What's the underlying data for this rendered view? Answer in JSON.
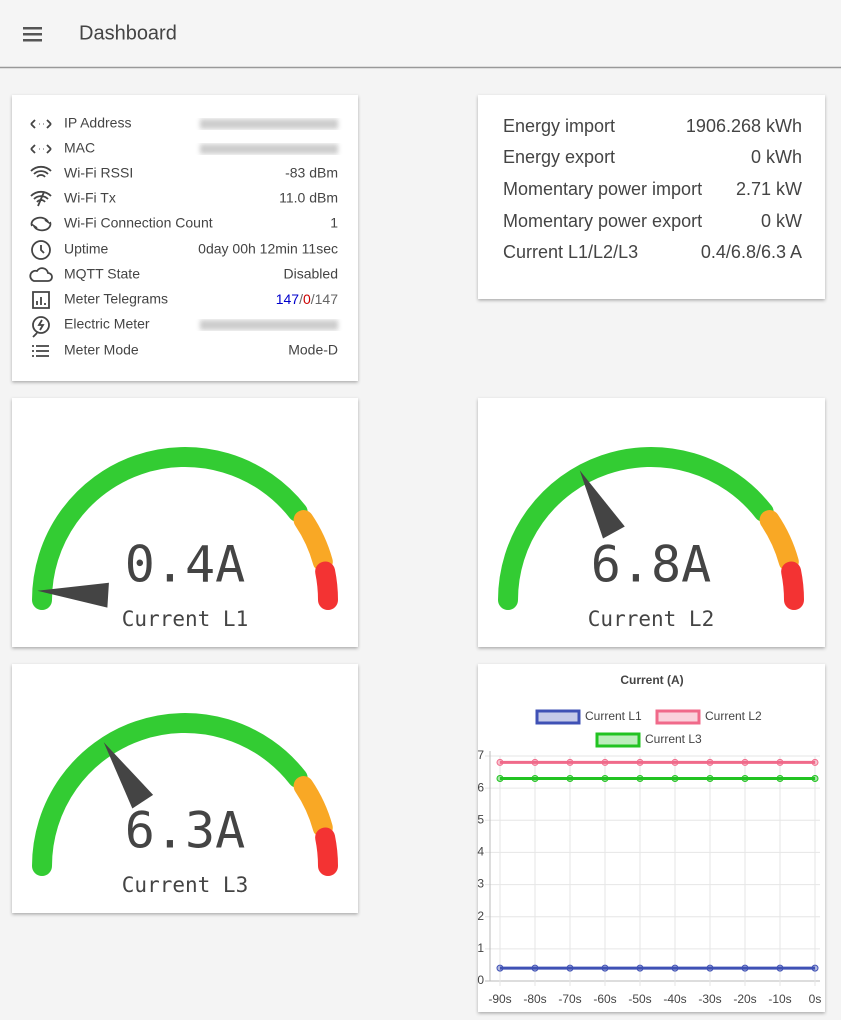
{
  "header": {
    "title": "Dashboard"
  },
  "info": {
    "rows": [
      {
        "label": "IP Address",
        "value": null
      },
      {
        "label": "MAC",
        "value": null
      },
      {
        "label": "Wi-Fi RSSI",
        "value": "-83 dBm"
      },
      {
        "label": "Wi-Fi Tx",
        "value": "11.0 dBm"
      },
      {
        "label": "Wi-Fi Connection Count",
        "value": "1"
      },
      {
        "label": "Uptime",
        "value": "0day 00h 12min 11sec"
      },
      {
        "label": "MQTT State",
        "value": "Disabled"
      },
      {
        "label": "Meter Telegrams",
        "value_parts": [
          {
            "text": "147",
            "color": "#0000cc"
          },
          {
            "text": "/"
          },
          {
            "text": "0",
            "color": "#cc0000"
          },
          {
            "text": "/147"
          }
        ]
      },
      {
        "label": "Electric Meter",
        "value": null
      },
      {
        "label": "Meter Mode",
        "value": "Mode-D"
      }
    ]
  },
  "energy": {
    "rows": [
      {
        "label": "Energy import",
        "value": "1906.268 kWh"
      },
      {
        "label": "Energy export",
        "value": "0 kWh"
      },
      {
        "label": "Momentary power import",
        "value": "2.71 kW"
      },
      {
        "label": "Momentary power export",
        "value": "0 kW"
      },
      {
        "label": "Current L1/L2/L3",
        "value": "0.4/6.8/6.3 A"
      }
    ]
  },
  "gauges": [
    {
      "value": 0.4,
      "value_label": "0.4A",
      "label": "Current L1"
    },
    {
      "value": 6.8,
      "value_label": "6.8A",
      "label": "Current L2"
    },
    {
      "value": 6.3,
      "value_label": "6.3A",
      "label": "Current L3"
    }
  ],
  "gauge_scale": {
    "min": 0,
    "max": 20,
    "zones": [
      {
        "to": 16,
        "color": "#33cc33"
      },
      {
        "to": 18.5,
        "color": "#f9a825"
      },
      {
        "to": 20,
        "color": "#f33333"
      }
    ],
    "needle_color": "#444444"
  },
  "chart_data": {
    "type": "line",
    "title": "Current (A)",
    "categories": [
      "-90s",
      "-80s",
      "-70s",
      "-60s",
      "-50s",
      "-40s",
      "-30s",
      "-20s",
      "-10s",
      "0s"
    ],
    "series": [
      {
        "name": "Current L1",
        "color": "#3f51b5",
        "values": [
          0.4,
          0.4,
          0.4,
          0.4,
          0.4,
          0.4,
          0.4,
          0.4,
          0.4,
          0.4
        ]
      },
      {
        "name": "Current L2",
        "color": "#f06a8a",
        "values": [
          6.8,
          6.8,
          6.8,
          6.8,
          6.8,
          6.8,
          6.8,
          6.8,
          6.8,
          6.8
        ]
      },
      {
        "name": "Current L3",
        "color": "#22c322",
        "values": [
          6.3,
          6.3,
          6.3,
          6.3,
          6.3,
          6.3,
          6.3,
          6.3,
          6.3,
          6.3
        ]
      }
    ],
    "ylim": [
      0,
      7
    ],
    "yticks": [
      0,
      1,
      2,
      3,
      4,
      5,
      6,
      7
    ],
    "grid": true
  }
}
